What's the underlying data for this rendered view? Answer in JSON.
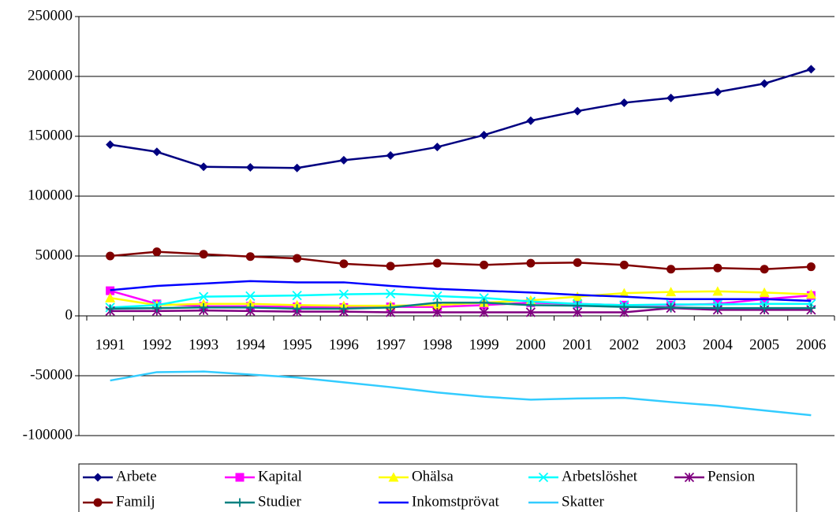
{
  "chart_data": {
    "type": "line",
    "categories": [
      "1991",
      "1992",
      "1993",
      "1994",
      "1995",
      "1996",
      "1997",
      "1998",
      "1999",
      "2000",
      "2001",
      "2002",
      "2003",
      "2004",
      "2005",
      "2006"
    ],
    "series": [
      {
        "name": "Arbete",
        "color": "#000080",
        "marker": "diamond",
        "values": [
          143000,
          137000,
          124500,
          124000,
          123500,
          130000,
          134000,
          141000,
          151000,
          163000,
          171000,
          178000,
          182000,
          187000,
          194000,
          206000
        ]
      },
      {
        "name": "Kapital",
        "color": "#ff00ff",
        "marker": "square",
        "values": [
          21000,
          10000,
          8000,
          8000,
          7500,
          7000,
          7500,
          7500,
          9000,
          11000,
          10000,
          9000,
          9000,
          10000,
          14000,
          17000
        ]
      },
      {
        "name": "Ohälsa",
        "color": "#ffff00",
        "marker": "triangle",
        "values": [
          15000,
          9000,
          10000,
          10000,
          9000,
          8500,
          8500,
          9000,
          11000,
          13000,
          16000,
          19000,
          20000,
          20500,
          19500,
          18000
        ]
      },
      {
        "name": "Arbetslöshet",
        "color": "#00ffff",
        "marker": "x",
        "values": [
          7000,
          9000,
          16000,
          16500,
          17000,
          18000,
          18500,
          16500,
          15000,
          12000,
          10000,
          9000,
          9500,
          9500,
          10000,
          10000
        ]
      },
      {
        "name": "Pension",
        "color": "#800080",
        "marker": "star",
        "values": [
          4000,
          4000,
          4500,
          4000,
          3500,
          3500,
          3000,
          3000,
          3000,
          3000,
          3000,
          3000,
          6500,
          5000,
          5000,
          5000
        ]
      },
      {
        "name": "Familj",
        "color": "#800000",
        "marker": "circle",
        "values": [
          50000,
          53500,
          51500,
          49500,
          48000,
          43500,
          41500,
          44000,
          42500,
          44000,
          44500,
          42500,
          39000,
          40000,
          39000,
          41000
        ]
      },
      {
        "name": "Studier",
        "color": "#008080",
        "marker": "plus",
        "values": [
          6000,
          6500,
          7000,
          7000,
          6000,
          6000,
          7000,
          11000,
          11000,
          9000,
          8500,
          7500,
          7000,
          6500,
          6500,
          6500
        ]
      },
      {
        "name": "Inkomstprövat",
        "color": "#0000ff",
        "marker": "none",
        "values": [
          21500,
          25000,
          27000,
          29000,
          28000,
          28000,
          25000,
          22500,
          21000,
          19500,
          17500,
          16000,
          14000,
          14000,
          14000,
          12500
        ]
      },
      {
        "name": "Skatter",
        "color": "#33ccff",
        "marker": "none",
        "values": [
          -54000,
          -47000,
          -46500,
          -49000,
          -51500,
          -55500,
          -59500,
          -64000,
          -67500,
          -70000,
          -69000,
          -68500,
          -72000,
          -75000,
          -79000,
          -83000
        ]
      }
    ],
    "ylim": [
      -100000,
      250000
    ],
    "yticks": [
      -100000,
      -50000,
      0,
      50000,
      100000,
      150000,
      200000,
      250000
    ],
    "grid": true,
    "legend": "bottom"
  }
}
